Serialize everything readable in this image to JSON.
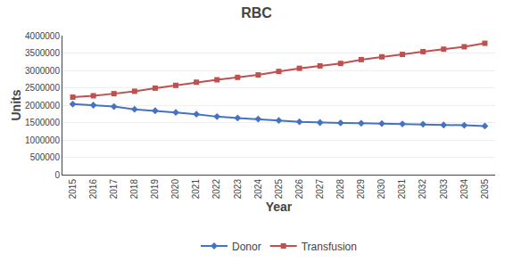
{
  "chart_data": {
    "type": "line",
    "title": "RBC",
    "xlabel": "Year",
    "ylabel": "Units",
    "x": [
      2015,
      2016,
      2017,
      2018,
      2019,
      2020,
      2021,
      2022,
      2023,
      2024,
      2025,
      2026,
      2027,
      2028,
      2029,
      2030,
      2031,
      2032,
      2033,
      2034,
      2035
    ],
    "series": [
      {
        "name": "Donor",
        "color": "#4472C4",
        "marker": "diamond",
        "values": [
          2030000,
          2000000,
          1960000,
          1880000,
          1840000,
          1790000,
          1740000,
          1670000,
          1630000,
          1600000,
          1560000,
          1520000,
          1500000,
          1490000,
          1480000,
          1470000,
          1460000,
          1450000,
          1430000,
          1420000,
          1400000
        ]
      },
      {
        "name": "Transfusion",
        "color": "#C0504D",
        "marker": "square",
        "values": [
          2230000,
          2270000,
          2330000,
          2400000,
          2490000,
          2570000,
          2660000,
          2730000,
          2800000,
          2870000,
          2970000,
          3060000,
          3130000,
          3200000,
          3310000,
          3390000,
          3460000,
          3540000,
          3610000,
          3680000,
          3780000
        ]
      }
    ],
    "xlim": [
      2014.5,
      2035.5
    ],
    "xticks": [
      2015,
      2016,
      2017,
      2018,
      2019,
      2020,
      2021,
      2022,
      2023,
      2024,
      2025,
      2026,
      2027,
      2028,
      2029,
      2030,
      2031,
      2032,
      2033,
      2034,
      2035
    ],
    "ylim": [
      0,
      4000000
    ],
    "yticks": [
      0,
      500000,
      1000000,
      1500000,
      2000000,
      2500000,
      3000000,
      3500000,
      4000000
    ],
    "grid": "y",
    "legend": "bottom"
  }
}
